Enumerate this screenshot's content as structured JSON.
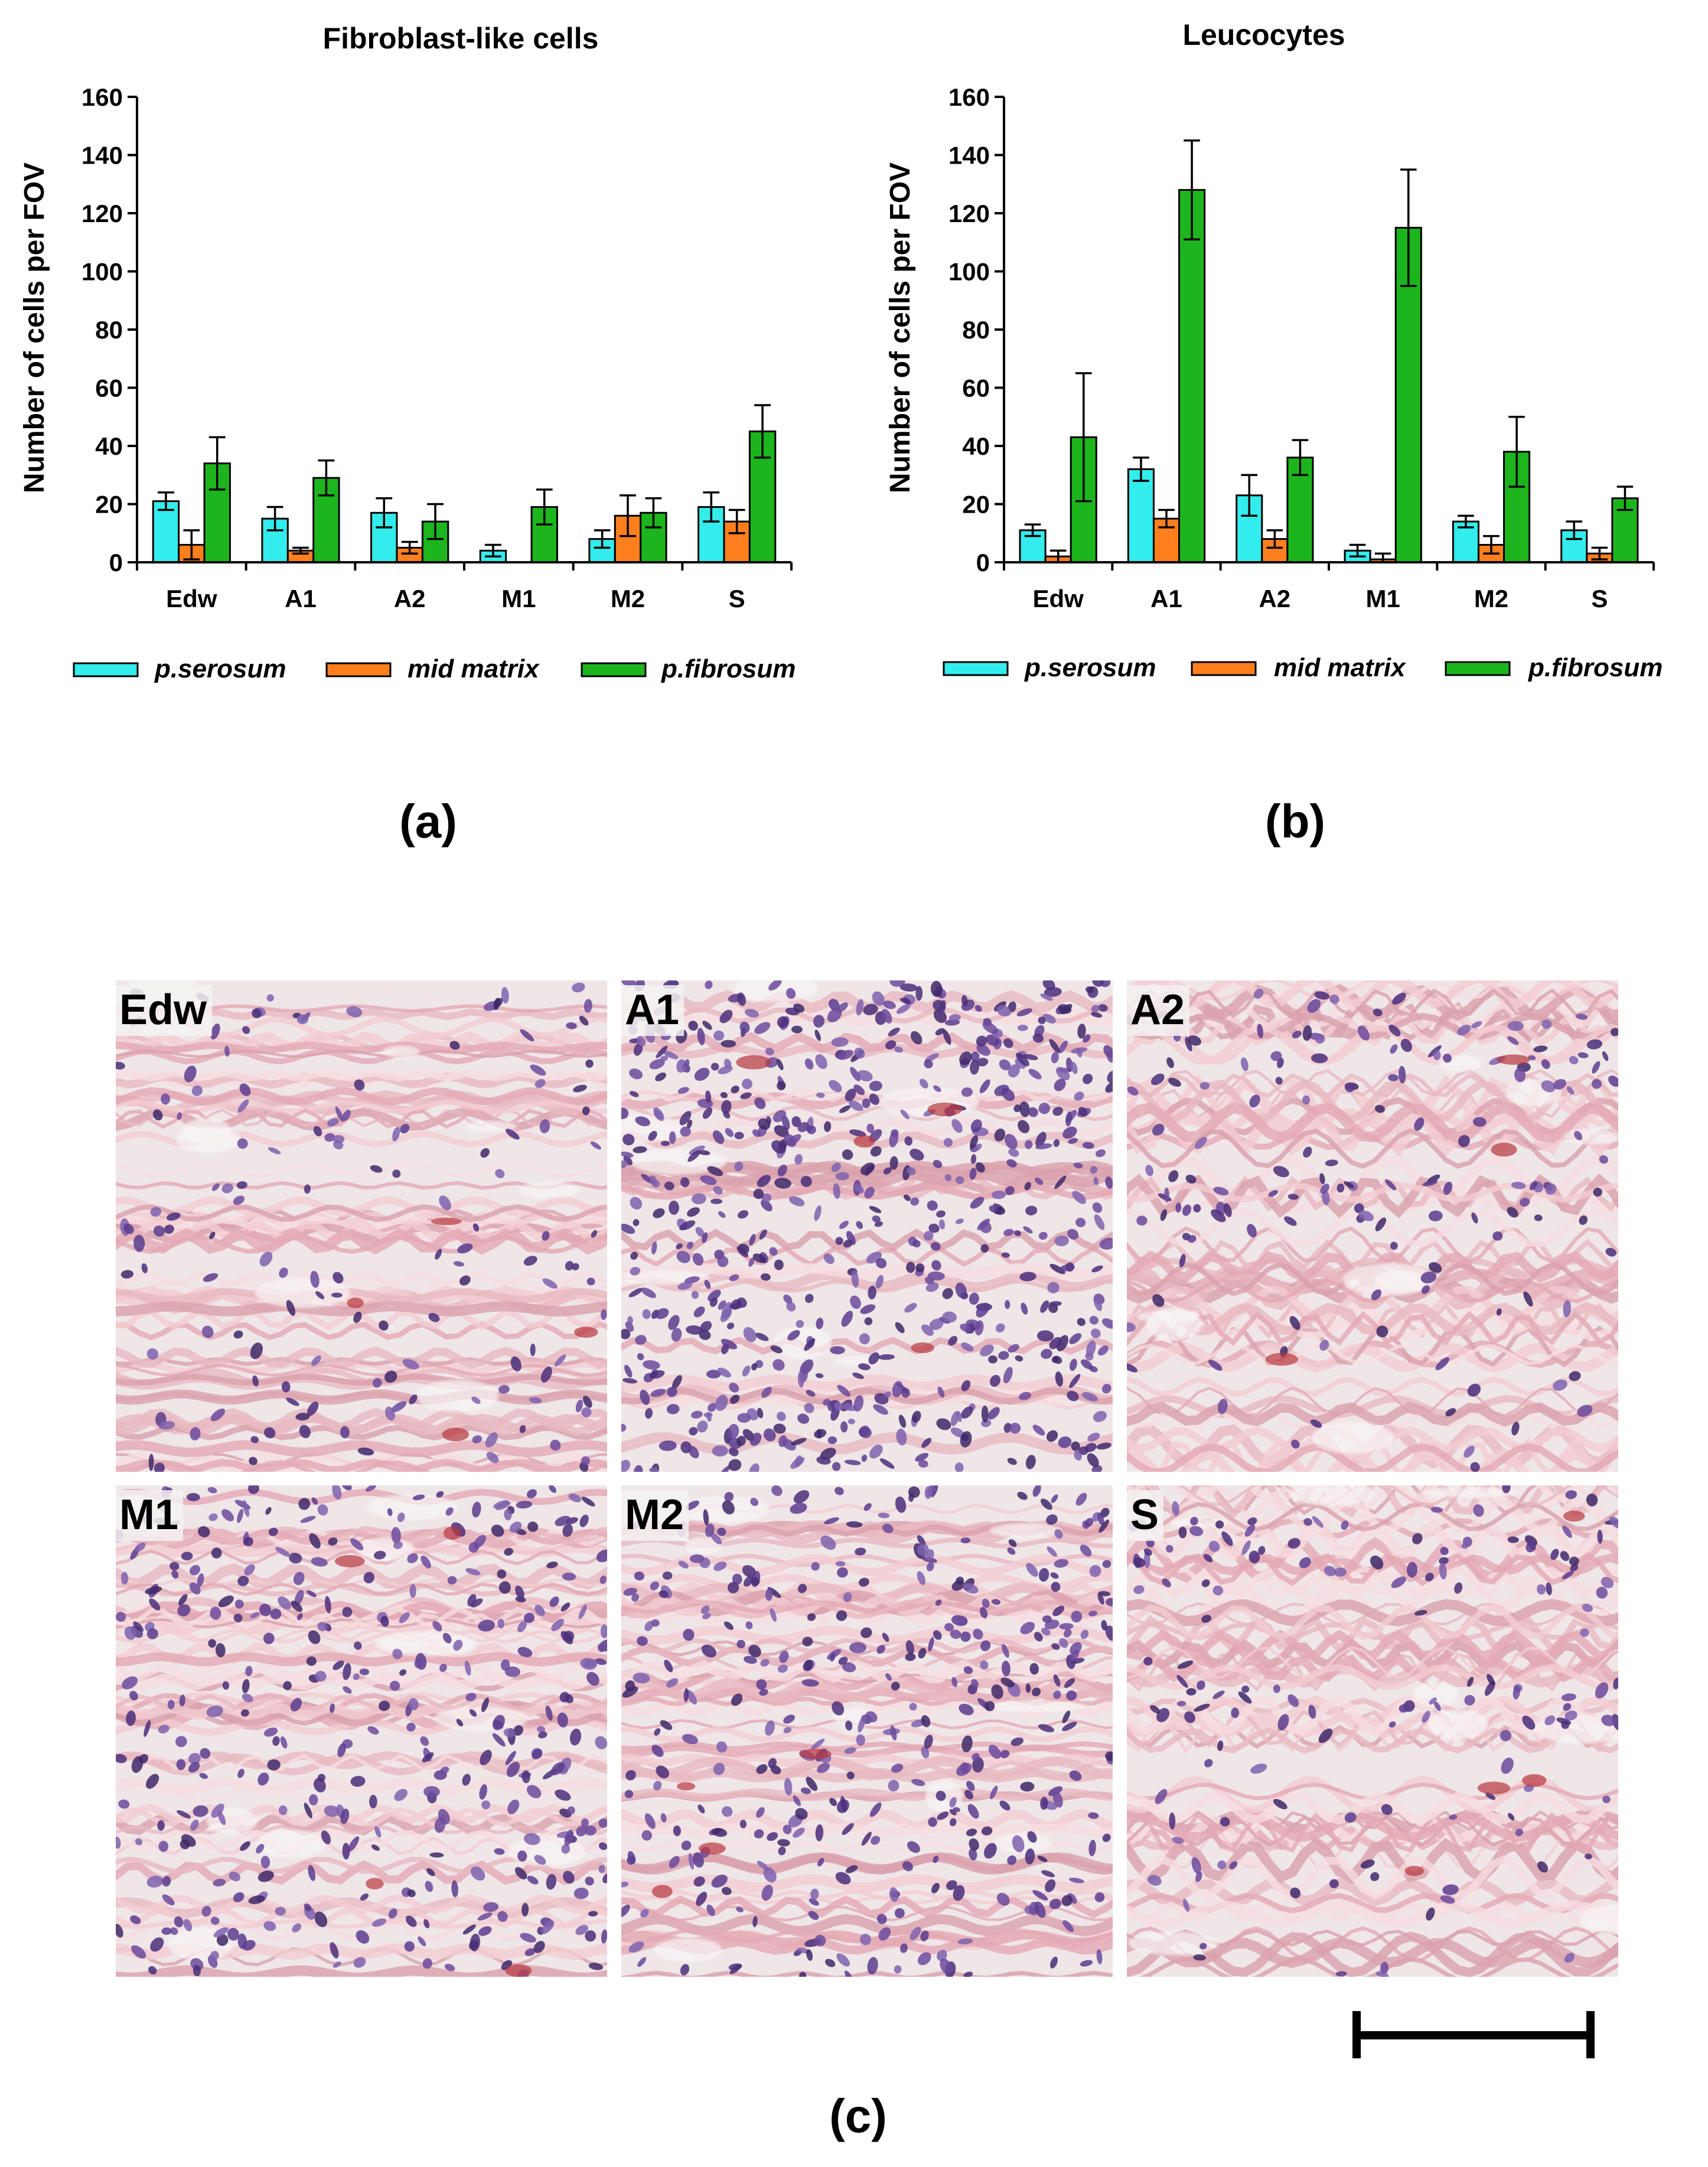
{
  "colors": {
    "p_serosum": "#33ECEC",
    "mid_matrix": "#FF7F1E",
    "p_fibrosum": "#1DB51D",
    "axis": "#000000"
  },
  "chart_data": [
    {
      "panel": "(a)",
      "type": "bar",
      "title": "Fibroblast-like cells",
      "ylabel": "Number of cells per FOV",
      "xlabel": "",
      "ylim": [
        0,
        160
      ],
      "yticks": [
        0,
        20,
        40,
        60,
        80,
        100,
        120,
        140,
        160
      ],
      "categories": [
        "Edw",
        "A1",
        "A2",
        "M1",
        "M2",
        "S"
      ],
      "legend_position": "bottom",
      "grid": false,
      "series": [
        {
          "name": "p.serosum",
          "values": [
            21,
            15,
            17,
            4,
            8,
            19
          ],
          "errors": [
            3,
            4,
            5,
            2,
            3,
            5
          ]
        },
        {
          "name": "mid matrix",
          "values": [
            6,
            4,
            5,
            0,
            16,
            14
          ],
          "errors": [
            5,
            1,
            2,
            0,
            7,
            4
          ]
        },
        {
          "name": "p.fibrosum",
          "values": [
            34,
            29,
            14,
            19,
            17,
            45
          ],
          "errors": [
            9,
            6,
            6,
            6,
            5,
            9
          ]
        }
      ]
    },
    {
      "panel": "(b)",
      "type": "bar",
      "title": "Leucocytes",
      "ylabel": "Number of cells per FOV",
      "xlabel": "",
      "ylim": [
        0,
        160
      ],
      "yticks": [
        0,
        20,
        40,
        60,
        80,
        100,
        120,
        140,
        160
      ],
      "categories": [
        "Edw",
        "A1",
        "A2",
        "M1",
        "M2",
        "S"
      ],
      "legend_position": "bottom",
      "grid": false,
      "series": [
        {
          "name": "p.serosum",
          "values": [
            11,
            32,
            23,
            4,
            14,
            11
          ],
          "errors": [
            2,
            4,
            7,
            2,
            2,
            3
          ]
        },
        {
          "name": "mid matrix",
          "values": [
            2,
            15,
            8,
            1,
            6,
            3
          ],
          "errors": [
            2,
            3,
            3,
            2,
            3,
            2
          ]
        },
        {
          "name": "p.fibrosum",
          "values": [
            43,
            128,
            36,
            115,
            38,
            22
          ],
          "errors": [
            22,
            17,
            6,
            20,
            12,
            4
          ]
        }
      ]
    }
  ],
  "micrographs": {
    "panel": "(c)",
    "tiles": [
      {
        "label": "Edw",
        "kind": "loose",
        "seed": 11
      },
      {
        "label": "A1",
        "kind": "dense",
        "seed": 23
      },
      {
        "label": "A2",
        "kind": "wavy",
        "seed": 37
      },
      {
        "label": "M1",
        "kind": "mixed",
        "seed": 41
      },
      {
        "label": "M2",
        "kind": "mixed",
        "seed": 53
      },
      {
        "label": "S",
        "kind": "wavy",
        "seed": 67
      }
    ]
  }
}
